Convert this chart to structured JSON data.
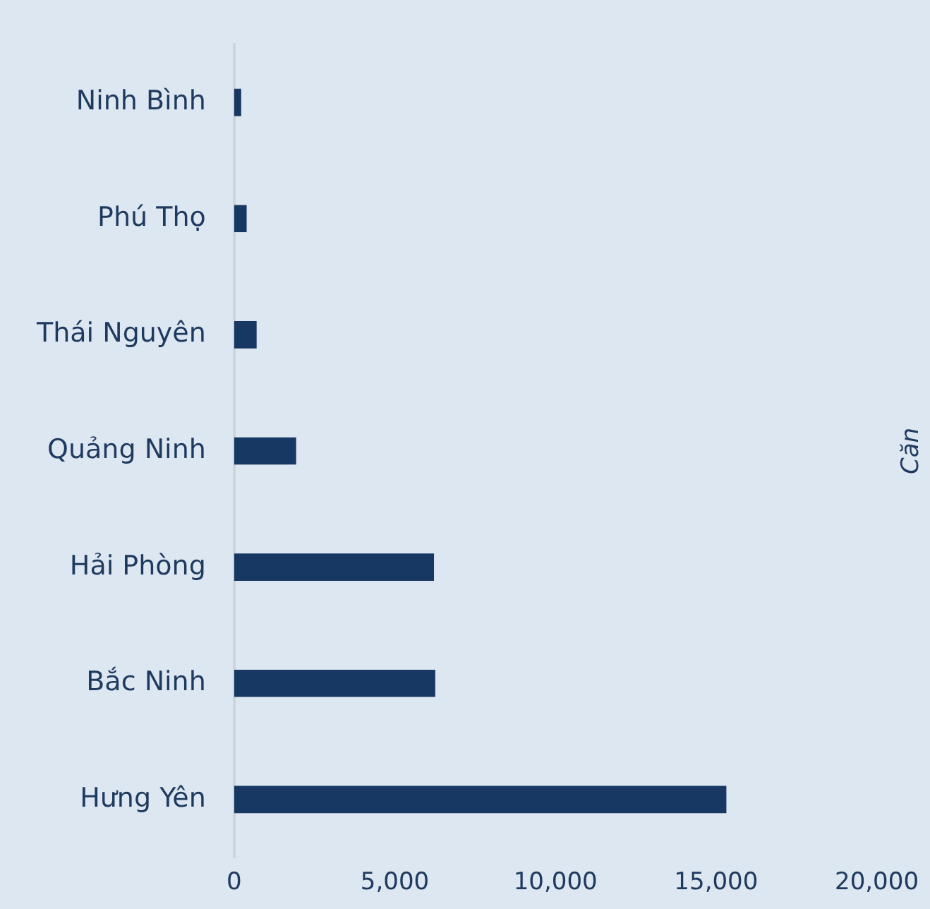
{
  "chart_data": {
    "type": "bar",
    "orientation": "horizontal",
    "annotations": [
      "Căn"
    ],
    "categories": [
      "Ninh Bình",
      "Phú Thọ",
      "Thái Nguyên",
      "Quảng Ninh",
      "Hải Phòng",
      "Bắc Ninh",
      "Hưng Yên"
    ],
    "values": [
      220,
      390,
      700,
      1930,
      6220,
      6260,
      15320
    ],
    "color": "#173862",
    "xlim": [
      0,
      20000
    ],
    "xticks": [
      0,
      {
        "value": 5000,
        "label": "5,000"
      },
      {
        "value": 10000,
        "label": "10,000"
      },
      {
        "value": 15000,
        "label": "15,000"
      },
      {
        "value": 20000,
        "label": "20,000"
      }
    ],
    "grid": false,
    "legend": false
  }
}
